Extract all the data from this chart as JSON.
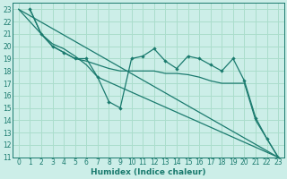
{
  "xlabel": "Humidex (Indice chaleur)",
  "background_color": "#cceee8",
  "grid_color": "#aaddcc",
  "line_color": "#1a7a6e",
  "xlim": [
    -0.5,
    23.5
  ],
  "ylim": [
    11,
    23.5
  ],
  "xticks": [
    0,
    1,
    2,
    3,
    4,
    5,
    6,
    7,
    8,
    9,
    10,
    11,
    12,
    13,
    14,
    15,
    16,
    17,
    18,
    19,
    20,
    21,
    22,
    23
  ],
  "yticks": [
    11,
    12,
    13,
    14,
    15,
    16,
    17,
    18,
    19,
    20,
    21,
    22,
    23
  ],
  "series_wiggly": [
    [
      1,
      23
    ],
    [
      2,
      21
    ],
    [
      3,
      20
    ],
    [
      4,
      19.5
    ],
    [
      5,
      19
    ],
    [
      6,
      19
    ],
    [
      7,
      17.5
    ],
    [
      8,
      15.5
    ],
    [
      9,
      15
    ],
    [
      10,
      19
    ],
    [
      11,
      19.2
    ],
    [
      12,
      19.8
    ],
    [
      13,
      18.8
    ],
    [
      14,
      18.2
    ],
    [
      15,
      19.2
    ],
    [
      16,
      19
    ],
    [
      17,
      18.5
    ],
    [
      18,
      18
    ],
    [
      19,
      19
    ],
    [
      20,
      17.2
    ],
    [
      21,
      14.2
    ],
    [
      22,
      12.5
    ],
    [
      23,
      11
    ]
  ],
  "series_upper": [
    [
      1,
      23
    ],
    [
      2,
      21
    ],
    [
      3,
      20
    ],
    [
      4,
      19.5
    ],
    [
      5,
      19
    ],
    [
      6,
      18.8
    ],
    [
      7,
      18.5
    ],
    [
      8,
      18.2
    ],
    [
      9,
      18
    ],
    [
      10,
      18
    ],
    [
      11,
      18
    ],
    [
      12,
      18
    ],
    [
      13,
      17.8
    ],
    [
      14,
      17.8
    ],
    [
      15,
      17.7
    ],
    [
      16,
      17.5
    ],
    [
      17,
      17.2
    ],
    [
      18,
      17
    ],
    [
      19,
      17
    ],
    [
      20,
      17
    ],
    [
      21,
      14
    ],
    [
      22,
      12.5
    ],
    [
      23,
      11
    ]
  ],
  "series_mid": [
    [
      0,
      23
    ],
    [
      2,
      21
    ],
    [
      3,
      20.2
    ],
    [
      4,
      19.8
    ],
    [
      5,
      19.2
    ],
    [
      6,
      18.5
    ],
    [
      7,
      17.5
    ],
    [
      23,
      11
    ]
  ],
  "series_straight": [
    [
      0,
      23
    ],
    [
      23,
      11
    ]
  ]
}
